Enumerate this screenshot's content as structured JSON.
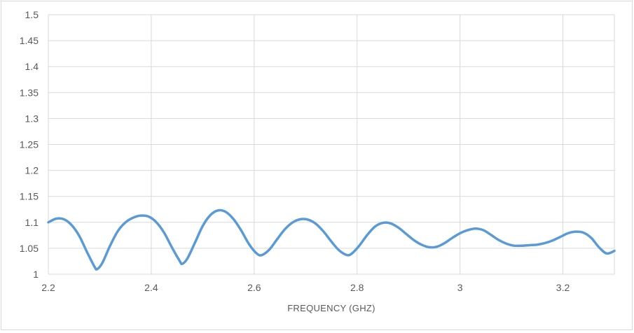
{
  "chart_data": {
    "type": "line",
    "title": "",
    "xlabel": "FREQUENCY (GHZ)",
    "ylabel": "",
    "xlim": [
      2.2,
      3.3
    ],
    "ylim": [
      1.0,
      1.5
    ],
    "x_ticks": [
      "2.2",
      "2.4",
      "2.6",
      "2.8",
      "3",
      "3.2"
    ],
    "y_ticks": [
      "1",
      "1.05",
      "1.1",
      "1.15",
      "1.2",
      "1.25",
      "1.3",
      "1.35",
      "1.4",
      "1.45",
      "1.5"
    ],
    "grid": true,
    "legend": "none",
    "series": [
      {
        "color": "#5b9bd5",
        "x": [
          2.2,
          2.215,
          2.23,
          2.245,
          2.26,
          2.275,
          2.29,
          2.295,
          2.305,
          2.32,
          2.335,
          2.35,
          2.365,
          2.38,
          2.395,
          2.41,
          2.425,
          2.44,
          2.455,
          2.46,
          2.47,
          2.485,
          2.5,
          2.515,
          2.53,
          2.545,
          2.56,
          2.575,
          2.59,
          2.605,
          2.615,
          2.63,
          2.645,
          2.66,
          2.675,
          2.69,
          2.705,
          2.72,
          2.735,
          2.75,
          2.765,
          2.78,
          2.79,
          2.805,
          2.82,
          2.835,
          2.85,
          2.865,
          2.88,
          2.895,
          2.91,
          2.925,
          2.94,
          2.955,
          2.97,
          2.985,
          3.0,
          3.015,
          3.03,
          3.045,
          3.06,
          3.075,
          3.09,
          3.105,
          3.12,
          3.135,
          3.15,
          3.165,
          3.18,
          3.195,
          3.21,
          3.225,
          3.24,
          3.255,
          3.27,
          3.285,
          3.3
        ],
        "y": [
          1.1,
          1.107,
          1.106,
          1.095,
          1.074,
          1.043,
          1.014,
          1.01,
          1.022,
          1.055,
          1.083,
          1.1,
          1.109,
          1.113,
          1.111,
          1.1,
          1.08,
          1.052,
          1.026,
          1.02,
          1.03,
          1.061,
          1.093,
          1.114,
          1.123,
          1.12,
          1.106,
          1.084,
          1.058,
          1.04,
          1.037,
          1.048,
          1.068,
          1.087,
          1.1,
          1.106,
          1.105,
          1.097,
          1.082,
          1.063,
          1.046,
          1.037,
          1.04,
          1.056,
          1.076,
          1.092,
          1.099,
          1.098,
          1.09,
          1.078,
          1.066,
          1.057,
          1.052,
          1.053,
          1.06,
          1.07,
          1.079,
          1.085,
          1.088,
          1.085,
          1.076,
          1.066,
          1.059,
          1.055,
          1.055,
          1.056,
          1.057,
          1.06,
          1.065,
          1.072,
          1.079,
          1.082,
          1.08,
          1.07,
          1.052,
          1.04,
          1.045
        ]
      }
    ]
  }
}
